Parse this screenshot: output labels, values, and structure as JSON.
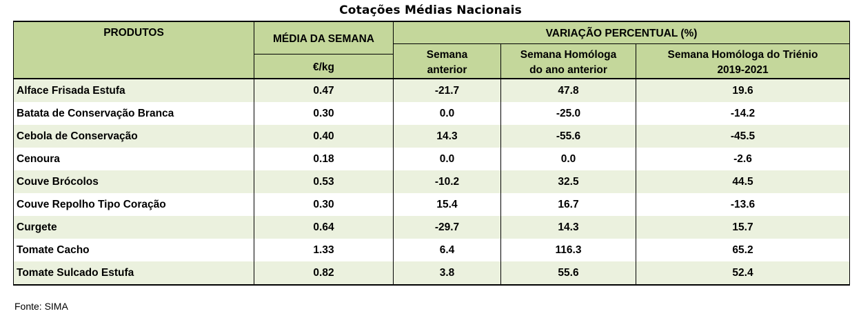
{
  "title": "Cotações Médias Nacionais",
  "headers": {
    "produtos": "PRODUTOS",
    "media_semana": "MÉDIA DA SEMANA",
    "unidade": "€/kg",
    "variacao": "VARIAÇÃO PERCENTUAL (%)",
    "semana_anterior_l1": "Semana",
    "semana_anterior_l2": "anterior",
    "homologa_l1": "Semana Homóloga",
    "homologa_l2": "do ano anterior",
    "trienio_l1": "Semana Homóloga do Triénio",
    "trienio_l2": "2019-2021"
  },
  "rows": [
    {
      "produto": "Alface Frisada Estufa",
      "media": "0.47",
      "anterior": "-21.7",
      "homologa": "47.8",
      "trienio": "19.6"
    },
    {
      "produto": "Batata de Conservação Branca",
      "media": "0.30",
      "anterior": "0.0",
      "homologa": "-25.0",
      "trienio": "-14.2"
    },
    {
      "produto": "Cebola de Conservação",
      "media": "0.40",
      "anterior": "14.3",
      "homologa": "-55.6",
      "trienio": "-45.5"
    },
    {
      "produto": "Cenoura",
      "media": "0.18",
      "anterior": "0.0",
      "homologa": "0.0",
      "trienio": "-2.6"
    },
    {
      "produto": "Couve Brócolos",
      "media": "0.53",
      "anterior": "-10.2",
      "homologa": "32.5",
      "trienio": "44.5"
    },
    {
      "produto": "Couve Repolho Tipo Coração",
      "media": "0.30",
      "anterior": "15.4",
      "homologa": "16.7",
      "trienio": "-13.6"
    },
    {
      "produto": "Curgete",
      "media": "0.64",
      "anterior": "-29.7",
      "homologa": "14.3",
      "trienio": "15.7"
    },
    {
      "produto": "Tomate Cacho",
      "media": "1.33",
      "anterior": "6.4",
      "homologa": "116.3",
      "trienio": "65.2"
    },
    {
      "produto": "Tomate Sulcado Estufa",
      "media": "0.82",
      "anterior": "3.8",
      "homologa": "55.6",
      "trienio": "52.4"
    }
  ],
  "source": "Fonte: SIMA",
  "colors": {
    "header_bg": "#c4d79b",
    "shaded_row": "#ebf1de"
  }
}
